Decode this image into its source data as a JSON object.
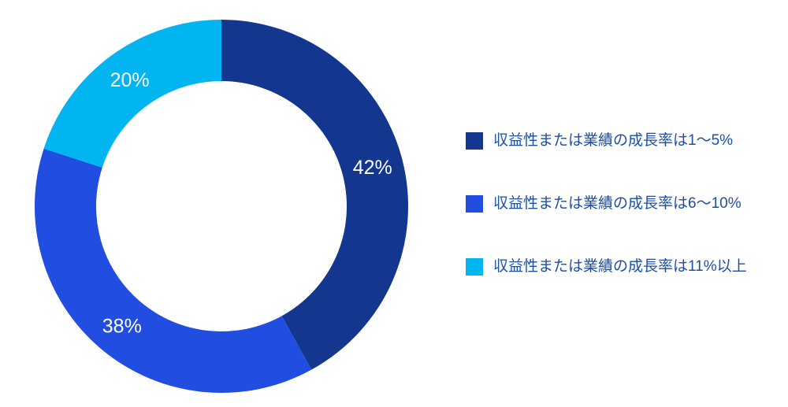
{
  "chart_data": {
    "type": "pie",
    "variant": "donut",
    "title": "",
    "series": [
      {
        "label": "収益性または業績の成長率は1〜5%",
        "value": 42,
        "value_label": "42%",
        "color": "#13368F"
      },
      {
        "label": "収益性または業績の成長率は6〜10%",
        "value": 38,
        "value_label": "38%",
        "color": "#214EE0"
      },
      {
        "label": "収益性または業績の成長率は11%以上",
        "value": 20,
        "value_label": "20%",
        "color": "#00B5F0"
      }
    ],
    "start_angle_deg": 0,
    "direction": "clockwise",
    "inner_radius_ratio": 0.67,
    "legend_position": "right",
    "label_color": "#FFFFFF",
    "legend_text_color": "#1E4E9E",
    "background": "#FFFFFF"
  }
}
